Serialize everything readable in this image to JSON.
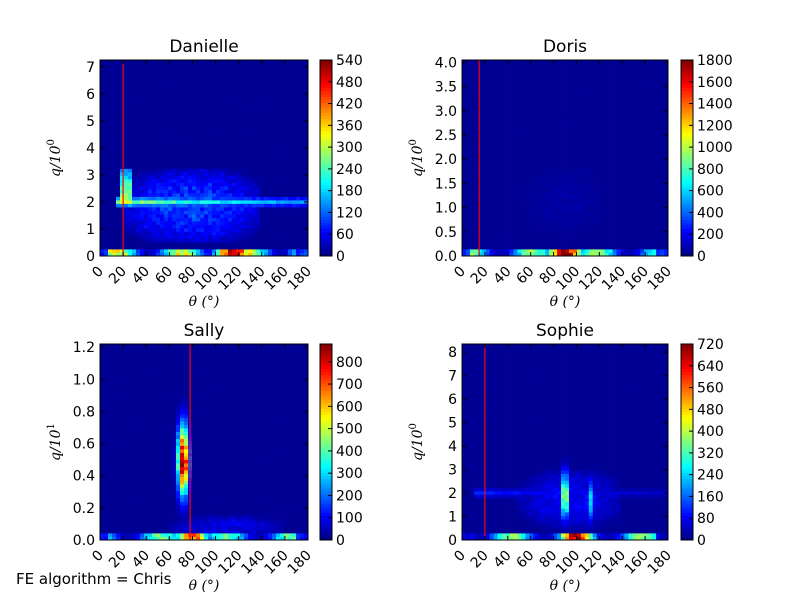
{
  "footer_note": "FE algorithm = Chris",
  "colormap": "jet",
  "chart_data": [
    {
      "type": "heatmap",
      "title": "Danielle",
      "xlabel": "θ (°)",
      "ylabel": "q/10^0",
      "ylabel_base": "q/10",
      "ylabel_exp": "0",
      "xlim": [
        0,
        180
      ],
      "ylim": [
        0,
        7.25
      ],
      "xticks": [
        "0",
        "20",
        "40",
        "60",
        "80",
        "100",
        "120",
        "140",
        "160",
        "180"
      ],
      "yticks": [
        "0",
        "1",
        "2",
        "3",
        "4",
        "5",
        "6",
        "7"
      ],
      "colorbar": {
        "min": 0,
        "max": 540,
        "ticks": [
          "0",
          "60",
          "120",
          "180",
          "240",
          "300",
          "360",
          "420",
          "480",
          "540"
        ]
      },
      "marker_line_x": 20,
      "features": [
        {
          "kind": "band",
          "x": [
            0,
            180
          ],
          "y": [
            0,
            0.12
          ],
          "value": 330,
          "peak_x": 115,
          "peak_value": 540
        },
        {
          "kind": "ridge",
          "x": [
            15,
            180
          ],
          "y": 2.0,
          "value": 300
        },
        {
          "kind": "spike",
          "x": 22,
          "y": [
            2.0,
            3.3
          ],
          "value": 320
        },
        {
          "kind": "blob",
          "x": [
            20,
            140
          ],
          "y": [
            0.5,
            3.2
          ],
          "value": 120
        }
      ]
    },
    {
      "type": "heatmap",
      "title": "Doris",
      "xlabel": "θ (°)",
      "ylabel": "q/10^0",
      "ylabel_base": "q/10",
      "ylabel_exp": "0",
      "xlim": [
        0,
        180
      ],
      "ylim": [
        0,
        4.05
      ],
      "xticks": [
        "0",
        "20",
        "40",
        "60",
        "80",
        "100",
        "120",
        "140",
        "160",
        "180"
      ],
      "yticks": [
        "0.0",
        "0.5",
        "1.0",
        "1.5",
        "2.0",
        "2.5",
        "3.0",
        "3.5",
        "4.0"
      ],
      "colorbar": {
        "min": 0,
        "max": 1800,
        "ticks": [
          "0",
          "200",
          "400",
          "600",
          "800",
          "1000",
          "1200",
          "1400",
          "1600",
          "1800"
        ]
      },
      "marker_line_x": 15,
      "features": [
        {
          "kind": "band",
          "x": [
            0,
            180
          ],
          "y": [
            0,
            0.07
          ],
          "value": 900,
          "peak_x": 90,
          "peak_value": 1800
        },
        {
          "kind": "blob",
          "x": [
            50,
            130
          ],
          "y": [
            0.3,
            2.0
          ],
          "value": 80
        }
      ]
    },
    {
      "type": "heatmap",
      "title": "Sally",
      "xlabel": "θ (°)",
      "ylabel": "q/10^1",
      "ylabel_base": "q/10",
      "ylabel_exp": "1",
      "xlim": [
        0,
        180
      ],
      "ylim": [
        0,
        1.22
      ],
      "xticks": [
        "0",
        "20",
        "40",
        "60",
        "80",
        "100",
        "120",
        "140",
        "160",
        "180"
      ],
      "yticks": [
        "0.0",
        "0.2",
        "0.4",
        "0.6",
        "0.8",
        "1.0",
        "1.2"
      ],
      "colorbar": {
        "min": 0,
        "max": 880,
        "ticks": [
          "0",
          "100",
          "200",
          "300",
          "400",
          "500",
          "600",
          "700",
          "800"
        ]
      },
      "marker_line_x": 78,
      "features": [
        {
          "kind": "band",
          "x": [
            0,
            180
          ],
          "y": [
            0,
            0.02
          ],
          "value": 420,
          "peak_x": 80,
          "peak_value": 700
        },
        {
          "kind": "ellipse",
          "x": 72,
          "y": 0.5,
          "rx": 5,
          "ry": 0.22,
          "value": 880
        },
        {
          "kind": "blob",
          "x": [
            60,
            160
          ],
          "y": [
            0.02,
            0.15
          ],
          "value": 110
        }
      ]
    },
    {
      "type": "heatmap",
      "title": "Sophie",
      "xlabel": "θ (°)",
      "ylabel": "q/10^0",
      "ylabel_base": "q/10",
      "ylabel_exp": "0",
      "xlim": [
        0,
        180
      ],
      "ylim": [
        0,
        8.35
      ],
      "xticks": [
        "0",
        "20",
        "40",
        "60",
        "80",
        "100",
        "120",
        "140",
        "160",
        "180"
      ],
      "yticks": [
        "0",
        "1",
        "2",
        "3",
        "4",
        "5",
        "6",
        "7",
        "8"
      ],
      "colorbar": {
        "min": 0,
        "max": 720,
        "ticks": [
          "0",
          "80",
          "160",
          "240",
          "320",
          "400",
          "480",
          "560",
          "640",
          "720"
        ]
      },
      "marker_line_x": 20,
      "features": [
        {
          "kind": "band",
          "x": [
            0,
            180
          ],
          "y": [
            0,
            0.12
          ],
          "value": 360,
          "peak_x": 100,
          "peak_value": 720
        },
        {
          "kind": "ridge",
          "x": [
            10,
            180
          ],
          "y": 2.0,
          "value": 110
        },
        {
          "kind": "ellipse",
          "x": 90,
          "y": 1.9,
          "rx": 4,
          "ry": 1.0,
          "value": 430
        },
        {
          "kind": "ellipse",
          "x": 113,
          "y": 1.7,
          "rx": 3,
          "ry": 0.9,
          "value": 260
        },
        {
          "kind": "blob",
          "x": [
            50,
            140
          ],
          "y": [
            0.5,
            3.0
          ],
          "value": 100
        }
      ]
    }
  ]
}
